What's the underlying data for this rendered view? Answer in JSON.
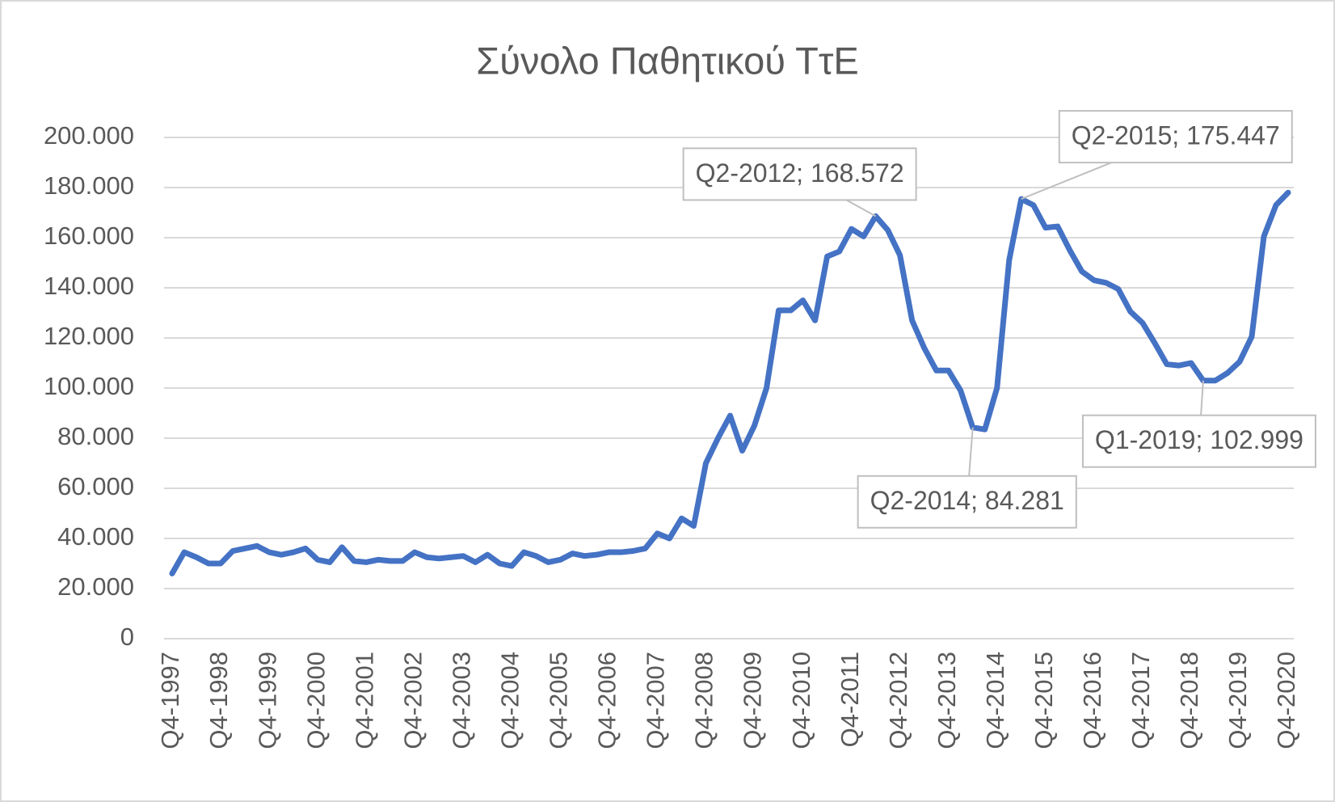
{
  "chart_data": {
    "type": "line",
    "title": "Σύνολο Παθητικού ΤτΕ",
    "categories": [
      "Q4-1997",
      null,
      null,
      null,
      "Q4-1998",
      null,
      null,
      null,
      "Q4-1999",
      null,
      null,
      null,
      "Q4-2000",
      null,
      null,
      null,
      "Q4-2001",
      null,
      null,
      null,
      "Q4-2002",
      null,
      null,
      null,
      "Q4-2003",
      null,
      null,
      null,
      "Q4-2004",
      null,
      null,
      null,
      "Q4-2005",
      null,
      null,
      null,
      "Q4-2006",
      null,
      null,
      null,
      "Q4-2007",
      null,
      null,
      null,
      "Q4-2008",
      null,
      null,
      null,
      "Q4-2009",
      null,
      null,
      null,
      "Q4-2010",
      null,
      null,
      null,
      "Q4-2011",
      null,
      null,
      null,
      "Q4-2012",
      null,
      null,
      null,
      "Q4-2013",
      null,
      null,
      null,
      "Q4-2014",
      null,
      null,
      null,
      "Q4-2015",
      null,
      null,
      null,
      "Q4-2016",
      null,
      null,
      null,
      "Q4-2017",
      null,
      null,
      null,
      "Q4-2018",
      null,
      null,
      null,
      "Q4-2019",
      null,
      null,
      null,
      "Q4-2020"
    ],
    "values": [
      26000,
      34500,
      32500,
      30000,
      30000,
      35000,
      36000,
      37000,
      34500,
      33500,
      34500,
      36000,
      31500,
      30500,
      36500,
      31000,
      30500,
      31500,
      31000,
      31000,
      34500,
      32500,
      32000,
      32500,
      33000,
      30500,
      33500,
      30000,
      29000,
      34500,
      33000,
      30500,
      31500,
      34000,
      33000,
      33500,
      34500,
      34500,
      35000,
      36000,
      42000,
      40000,
      48000,
      45000,
      70000,
      80000,
      89000,
      75000,
      85000,
      100000,
      131000,
      131000,
      135000,
      127000,
      152500,
      154500,
      163500,
      160500,
      168572,
      163000,
      153000,
      127000,
      116000,
      107000,
      107000,
      99000,
      84281,
      83500,
      100000,
      151000,
      175447,
      173000,
      164000,
      164500,
      155000,
      146500,
      143000,
      142000,
      139500,
      130500,
      126000,
      118000,
      109500,
      109000,
      110000,
      102999,
      103000,
      106000,
      110500,
      120500,
      160500,
      173000,
      178000
    ],
    "value_labels": [
      null,
      null,
      null,
      null,
      null,
      null,
      null,
      null,
      null,
      null,
      null,
      null,
      null,
      null,
      null,
      null,
      null,
      null,
      null,
      null,
      null,
      null,
      null,
      null,
      null,
      null,
      null,
      null,
      null,
      null,
      null,
      null,
      null,
      null,
      null,
      null,
      null,
      null,
      null,
      null,
      null,
      null,
      null,
      null,
      null,
      null,
      null,
      null,
      null,
      null,
      null,
      null,
      null,
      null,
      null,
      null,
      null,
      null,
      "Q2-2012; 168.572",
      null,
      null,
      null,
      null,
      null,
      null,
      null,
      "Q2-2014; 84.281",
      null,
      null,
      null,
      "Q2-2015; 175.447",
      null,
      null,
      null,
      null,
      null,
      null,
      null,
      null,
      null,
      null,
      null,
      null,
      null,
      null,
      "Q1-2019; 102.999",
      null,
      null,
      null,
      null,
      null,
      null,
      null
    ],
    "color": "#4472c4",
    "ylim": [
      0,
      200000
    ],
    "yticks": [
      0,
      {
        "value": 20000,
        "label": "20.000"
      },
      {
        "value": 40000,
        "label": "40.000"
      },
      {
        "value": 60000,
        "label": "60.000"
      },
      {
        "value": 80000,
        "label": "80.000"
      },
      {
        "value": 100000,
        "label": "100.000"
      },
      {
        "value": 120000,
        "label": "120.000"
      },
      {
        "value": 140000,
        "label": "140.000"
      },
      {
        "value": 160000,
        "label": "160.000"
      },
      {
        "value": 180000,
        "label": "180.000"
      },
      {
        "value": 200000,
        "label": "200.000"
      }
    ],
    "grid": true
  }
}
